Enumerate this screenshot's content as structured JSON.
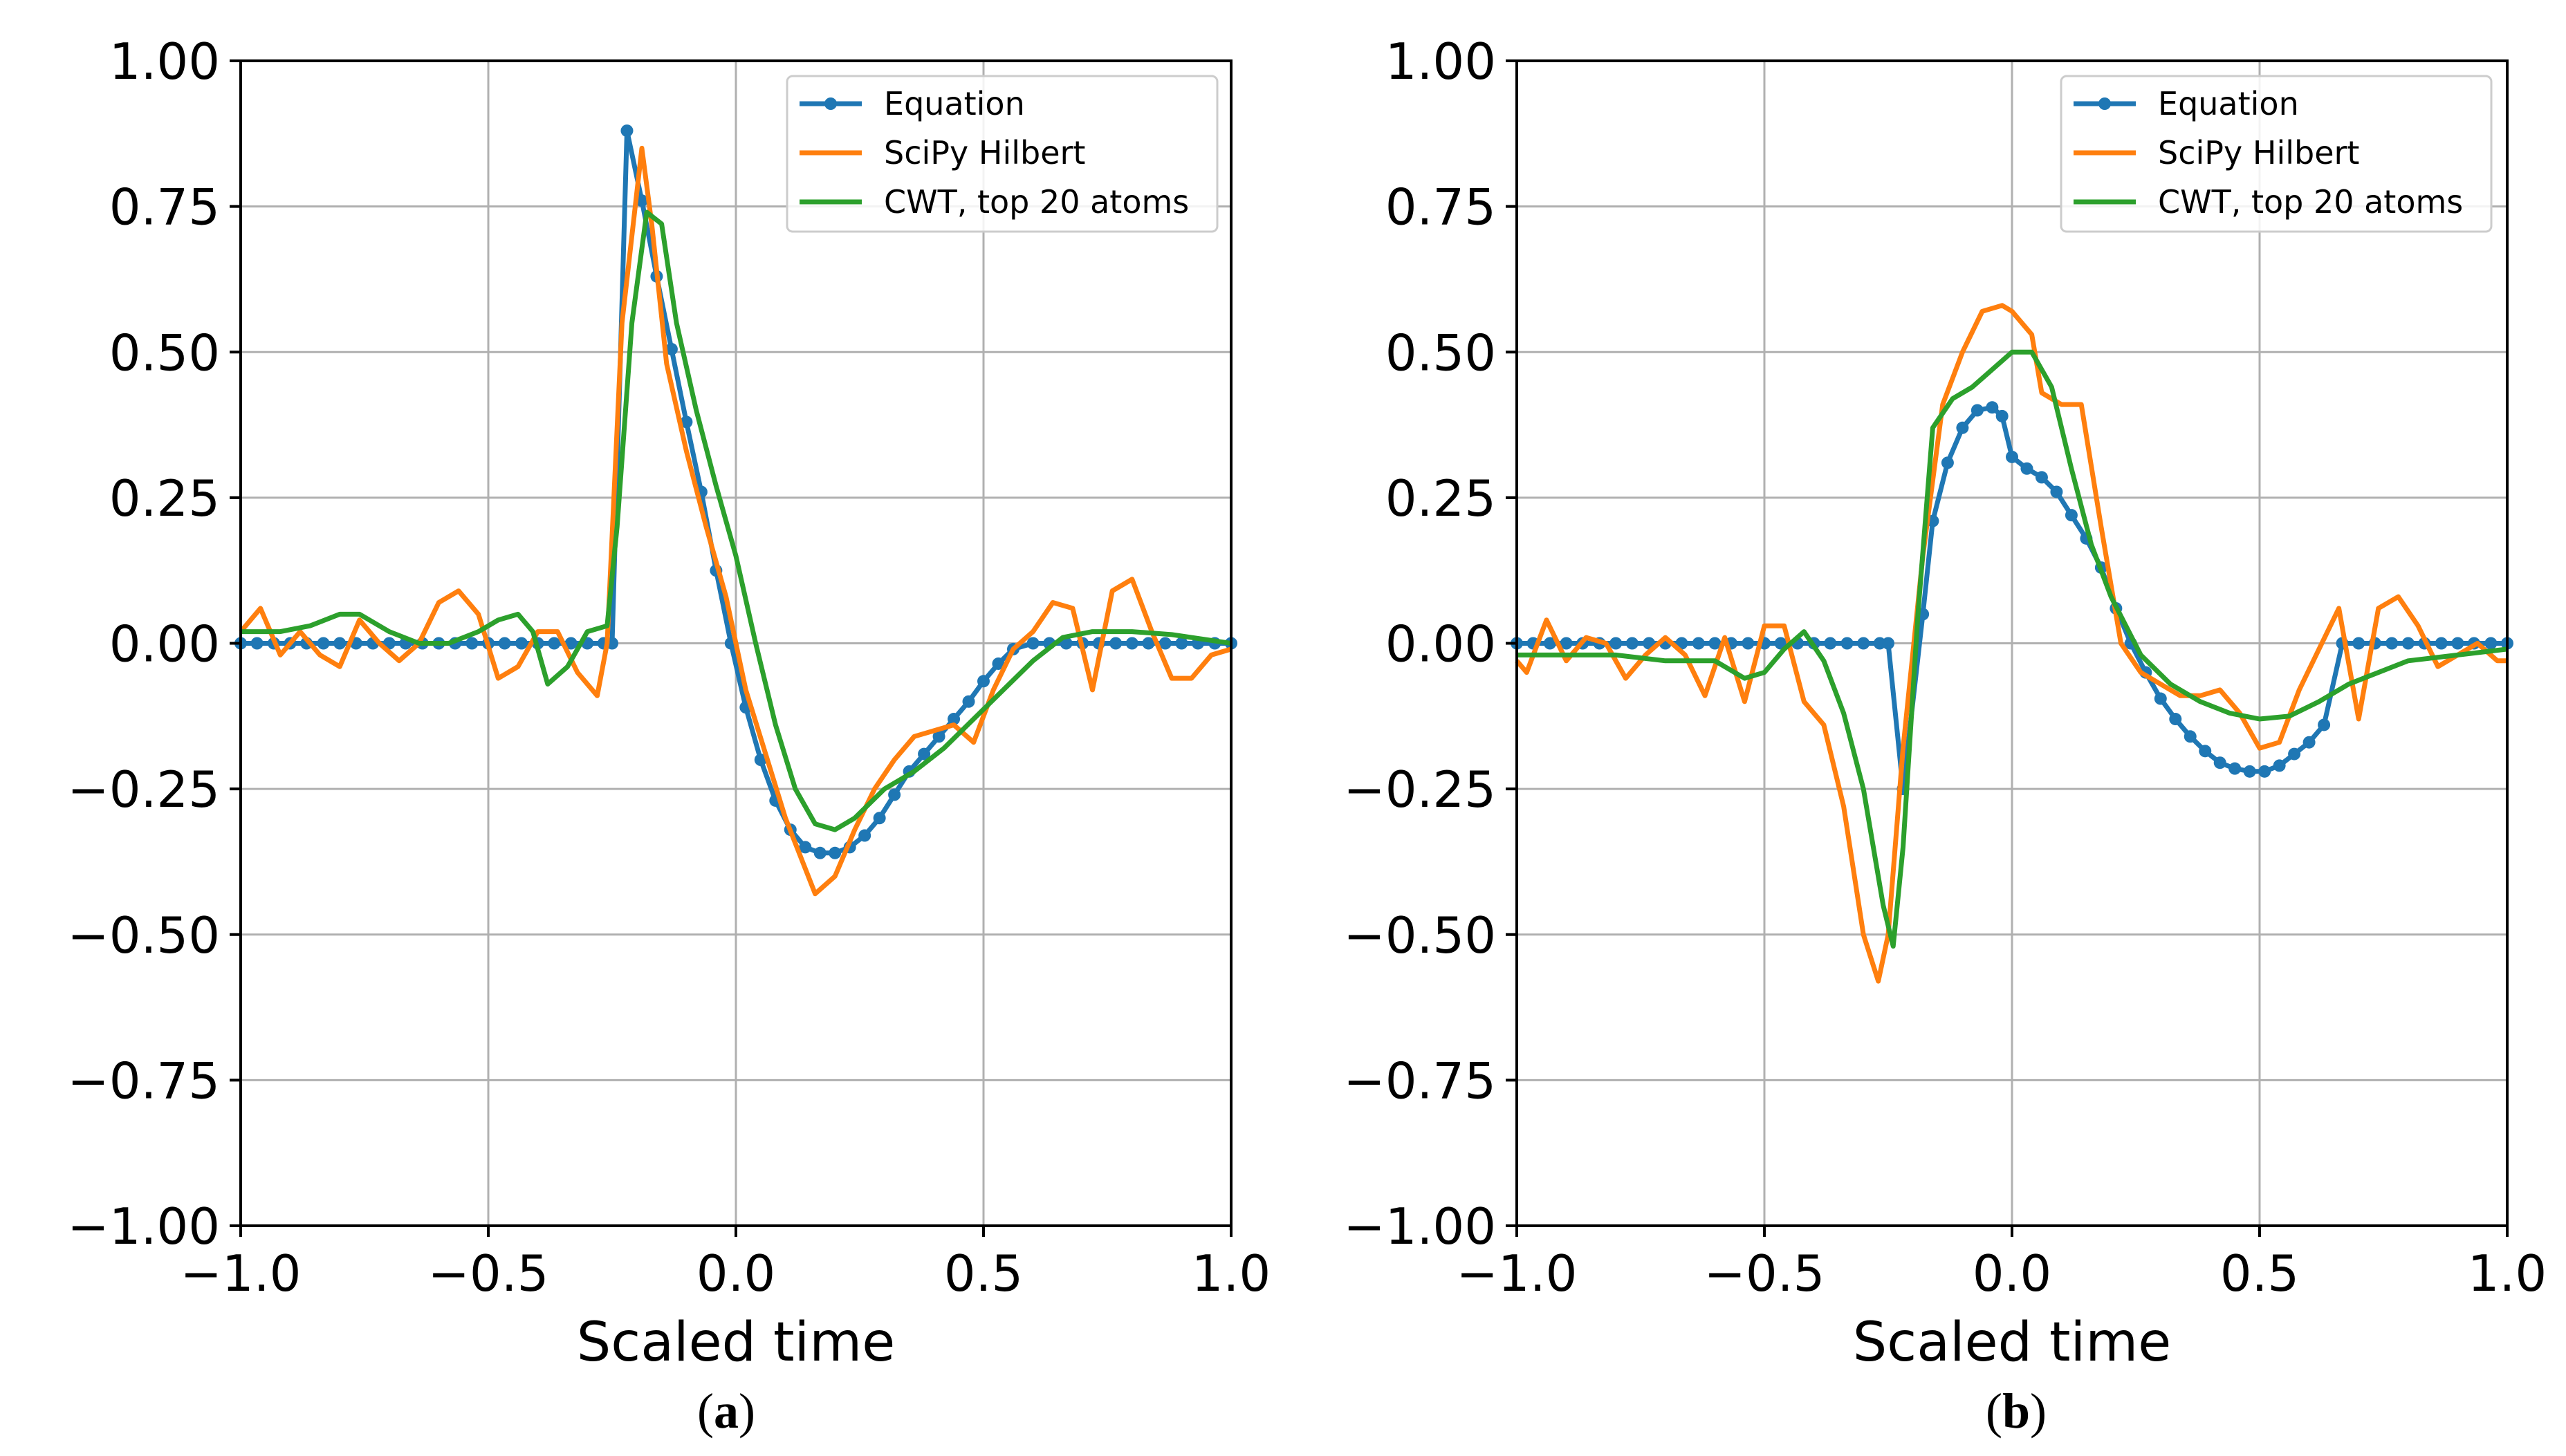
{
  "chart_data": [
    {
      "type": "line",
      "panel": "a",
      "xlabel": "Scaled time",
      "ylabel": "",
      "xlim": [
        -1.0,
        1.0
      ],
      "ylim": [
        -1.0,
        1.0
      ],
      "xticks": [
        "−1.0",
        "−0.5",
        "0.0",
        "0.5",
        "1.0"
      ],
      "yticks": [
        "1.00",
        "0.75",
        "0.50",
        "0.25",
        "0.00",
        "−0.25",
        "−0.50",
        "−0.75",
        "−1.00"
      ],
      "grid": true,
      "legend_position": "top-right",
      "series": [
        {
          "name": "Equation",
          "color": "#1f77b4",
          "marker": true,
          "x": [
            -1.0,
            -0.967,
            -0.933,
            -0.9,
            -0.867,
            -0.833,
            -0.8,
            -0.767,
            -0.733,
            -0.7,
            -0.667,
            -0.633,
            -0.6,
            -0.567,
            -0.533,
            -0.5,
            -0.467,
            -0.433,
            -0.4,
            -0.367,
            -0.333,
            -0.3,
            -0.267,
            -0.25,
            -0.22,
            -0.19,
            -0.16,
            -0.13,
            -0.1,
            -0.07,
            -0.04,
            -0.01,
            0.02,
            0.05,
            0.08,
            0.11,
            0.14,
            0.17,
            0.2,
            0.23,
            0.26,
            0.29,
            0.32,
            0.35,
            0.38,
            0.41,
            0.44,
            0.47,
            0.5,
            0.53,
            0.56,
            0.6,
            0.633,
            0.667,
            0.7,
            0.733,
            0.767,
            0.8,
            0.833,
            0.867,
            0.9,
            0.933,
            0.967,
            1.0
          ],
          "y": [
            0,
            0,
            0,
            0,
            0,
            0,
            0,
            0,
            0,
            0,
            0,
            0,
            0,
            0,
            0,
            0,
            0,
            0,
            0,
            0,
            0,
            0,
            0,
            0,
            0.88,
            0.76,
            0.63,
            0.505,
            0.38,
            0.26,
            0.125,
            0.0,
            -0.11,
            -0.2,
            -0.27,
            -0.32,
            -0.35,
            -0.36,
            -0.36,
            -0.35,
            -0.33,
            -0.3,
            -0.26,
            -0.22,
            -0.19,
            -0.16,
            -0.13,
            -0.1,
            -0.065,
            -0.035,
            -0.01,
            0,
            0,
            0,
            0,
            0,
            0,
            0,
            0,
            0,
            0,
            0,
            0,
            0
          ]
        },
        {
          "name": "SciPy Hilbert",
          "color": "#ff7f0e",
          "marker": false,
          "x": [
            -1.0,
            -0.96,
            -0.92,
            -0.88,
            -0.84,
            -0.8,
            -0.76,
            -0.72,
            -0.68,
            -0.64,
            -0.6,
            -0.56,
            -0.52,
            -0.48,
            -0.44,
            -0.4,
            -0.36,
            -0.32,
            -0.28,
            -0.26,
            -0.23,
            -0.19,
            -0.17,
            -0.14,
            -0.1,
            -0.06,
            -0.02,
            0.02,
            0.06,
            0.1,
            0.16,
            0.2,
            0.24,
            0.28,
            0.32,
            0.36,
            0.4,
            0.44,
            0.48,
            0.52,
            0.56,
            0.6,
            0.64,
            0.68,
            0.72,
            0.76,
            0.8,
            0.84,
            0.88,
            0.92,
            0.96,
            1.0
          ],
          "y": [
            0.02,
            0.06,
            -0.02,
            0.02,
            -0.02,
            -0.04,
            0.04,
            0,
            -0.03,
            0,
            0.07,
            0.09,
            0.05,
            -0.06,
            -0.04,
            0.02,
            0.02,
            -0.05,
            -0.09,
            0.0,
            0.55,
            0.85,
            0.72,
            0.48,
            0.33,
            0.2,
            0.08,
            -0.08,
            -0.19,
            -0.3,
            -0.43,
            -0.4,
            -0.32,
            -0.25,
            -0.2,
            -0.16,
            -0.15,
            -0.14,
            -0.17,
            -0.08,
            -0.01,
            0.02,
            0.07,
            0.06,
            -0.08,
            0.09,
            0.11,
            0.02,
            -0.06,
            -0.06,
            -0.02,
            -0.01
          ]
        },
        {
          "name": "CWT, top 20 atoms",
          "color": "#2ca02c",
          "marker": false,
          "x": [
            -1.0,
            -0.92,
            -0.86,
            -0.8,
            -0.76,
            -0.7,
            -0.64,
            -0.58,
            -0.52,
            -0.48,
            -0.44,
            -0.41,
            -0.38,
            -0.34,
            -0.3,
            -0.26,
            -0.24,
            -0.21,
            -0.18,
            -0.15,
            -0.12,
            -0.08,
            -0.04,
            0.0,
            0.04,
            0.08,
            0.12,
            0.16,
            0.2,
            0.24,
            0.3,
            0.36,
            0.42,
            0.48,
            0.54,
            0.6,
            0.66,
            0.72,
            0.8,
            0.88,
            1.0
          ],
          "y": [
            0.02,
            0.02,
            0.03,
            0.05,
            0.05,
            0.02,
            0.0,
            0.0,
            0.02,
            0.04,
            0.05,
            0.02,
            -0.07,
            -0.04,
            0.02,
            0.03,
            0.2,
            0.55,
            0.74,
            0.72,
            0.55,
            0.4,
            0.27,
            0.15,
            0.0,
            -0.14,
            -0.25,
            -0.31,
            -0.32,
            -0.3,
            -0.25,
            -0.22,
            -0.18,
            -0.13,
            -0.08,
            -0.03,
            0.01,
            0.02,
            0.02,
            0.015,
            0.0
          ]
        }
      ]
    },
    {
      "type": "line",
      "panel": "b",
      "xlabel": "Scaled time",
      "ylabel": "",
      "xlim": [
        -1.0,
        1.0
      ],
      "ylim": [
        -1.0,
        1.0
      ],
      "xticks": [
        "−1.0",
        "−0.5",
        "0.0",
        "0.5",
        "1.0"
      ],
      "yticks": [
        "1.00",
        "0.75",
        "0.50",
        "0.25",
        "0.00",
        "−0.25",
        "−0.50",
        "−0.75",
        "−1.00"
      ],
      "grid": true,
      "legend_position": "top-right",
      "series": [
        {
          "name": "Equation",
          "color": "#1f77b4",
          "marker": true,
          "x": [
            -1.0,
            -0.967,
            -0.933,
            -0.9,
            -0.867,
            -0.833,
            -0.8,
            -0.767,
            -0.733,
            -0.7,
            -0.667,
            -0.633,
            -0.6,
            -0.567,
            -0.533,
            -0.5,
            -0.467,
            -0.433,
            -0.4,
            -0.367,
            -0.333,
            -0.3,
            -0.267,
            -0.25,
            -0.22,
            -0.18,
            -0.16,
            -0.13,
            -0.1,
            -0.07,
            -0.04,
            -0.02,
            0.0,
            0.03,
            0.06,
            0.09,
            0.12,
            0.15,
            0.18,
            0.21,
            0.24,
            0.27,
            0.3,
            0.33,
            0.36,
            0.39,
            0.42,
            0.45,
            0.48,
            0.51,
            0.54,
            0.57,
            0.6,
            0.63,
            0.667,
            0.7,
            0.733,
            0.767,
            0.8,
            0.833,
            0.867,
            0.9,
            0.933,
            0.967,
            1.0
          ],
          "y": [
            0,
            0,
            0,
            0,
            0,
            0,
            0,
            0,
            0,
            0,
            0,
            0,
            0,
            0,
            0,
            0,
            0,
            0,
            0,
            0,
            0,
            0,
            0,
            0,
            -0.25,
            0.05,
            0.21,
            0.31,
            0.37,
            0.4,
            0.405,
            0.39,
            0.32,
            0.3,
            0.285,
            0.26,
            0.22,
            0.18,
            0.13,
            0.06,
            0.0,
            -0.05,
            -0.095,
            -0.13,
            -0.16,
            -0.185,
            -0.205,
            -0.215,
            -0.22,
            -0.22,
            -0.21,
            -0.19,
            -0.17,
            -0.14,
            0,
            0,
            0,
            0,
            0,
            0,
            0,
            0,
            0,
            0,
            0
          ]
        },
        {
          "name": "SciPy Hilbert",
          "color": "#ff7f0e",
          "marker": false,
          "x": [
            -1.0,
            -0.98,
            -0.94,
            -0.9,
            -0.86,
            -0.82,
            -0.78,
            -0.74,
            -0.7,
            -0.66,
            -0.62,
            -0.58,
            -0.54,
            -0.5,
            -0.46,
            -0.42,
            -0.38,
            -0.34,
            -0.3,
            -0.27,
            -0.25,
            -0.22,
            -0.18,
            -0.14,
            -0.1,
            -0.06,
            -0.02,
            0.0,
            0.04,
            0.06,
            0.1,
            0.14,
            0.18,
            0.22,
            0.26,
            0.3,
            0.34,
            0.38,
            0.42,
            0.46,
            0.5,
            0.54,
            0.58,
            0.62,
            0.66,
            0.7,
            0.74,
            0.78,
            0.82,
            0.86,
            0.9,
            0.94,
            0.98,
            1.0
          ],
          "y": [
            -0.03,
            -0.05,
            0.04,
            -0.03,
            0.01,
            0.0,
            -0.06,
            -0.02,
            0.01,
            -0.02,
            -0.09,
            0.01,
            -0.1,
            0.03,
            0.03,
            -0.1,
            -0.14,
            -0.28,
            -0.5,
            -0.58,
            -0.5,
            -0.18,
            0.15,
            0.41,
            0.5,
            0.57,
            0.58,
            0.57,
            0.53,
            0.43,
            0.41,
            0.41,
            0.2,
            0.0,
            -0.05,
            -0.07,
            -0.09,
            -0.09,
            -0.08,
            -0.12,
            -0.18,
            -0.17,
            -0.08,
            -0.01,
            0.06,
            -0.13,
            0.06,
            0.08,
            0.03,
            -0.04,
            -0.02,
            0.0,
            -0.03,
            -0.03
          ]
        },
        {
          "name": "CWT, top 20 atoms",
          "color": "#2ca02c",
          "marker": false,
          "x": [
            -1.0,
            -0.9,
            -0.8,
            -0.7,
            -0.6,
            -0.54,
            -0.5,
            -0.46,
            -0.42,
            -0.38,
            -0.34,
            -0.3,
            -0.26,
            -0.24,
            -0.22,
            -0.19,
            -0.16,
            -0.12,
            -0.08,
            -0.04,
            0.0,
            0.04,
            0.08,
            0.12,
            0.16,
            0.2,
            0.26,
            0.32,
            0.38,
            0.44,
            0.5,
            0.56,
            0.62,
            0.68,
            0.74,
            0.8,
            0.9,
            1.0
          ],
          "y": [
            -0.02,
            -0.02,
            -0.02,
            -0.03,
            -0.03,
            -0.06,
            -0.05,
            -0.01,
            0.02,
            -0.03,
            -0.12,
            -0.25,
            -0.45,
            -0.52,
            -0.35,
            0.05,
            0.37,
            0.42,
            0.44,
            0.47,
            0.5,
            0.5,
            0.44,
            0.3,
            0.17,
            0.08,
            -0.02,
            -0.07,
            -0.1,
            -0.12,
            -0.13,
            -0.125,
            -0.1,
            -0.07,
            -0.05,
            -0.03,
            -0.02,
            -0.01
          ]
        }
      ]
    }
  ],
  "panels": [
    {
      "label_open": "(",
      "label_letter": "a",
      "label_close": ")"
    },
    {
      "label_open": "(",
      "label_letter": "b",
      "label_close": ")"
    }
  ]
}
